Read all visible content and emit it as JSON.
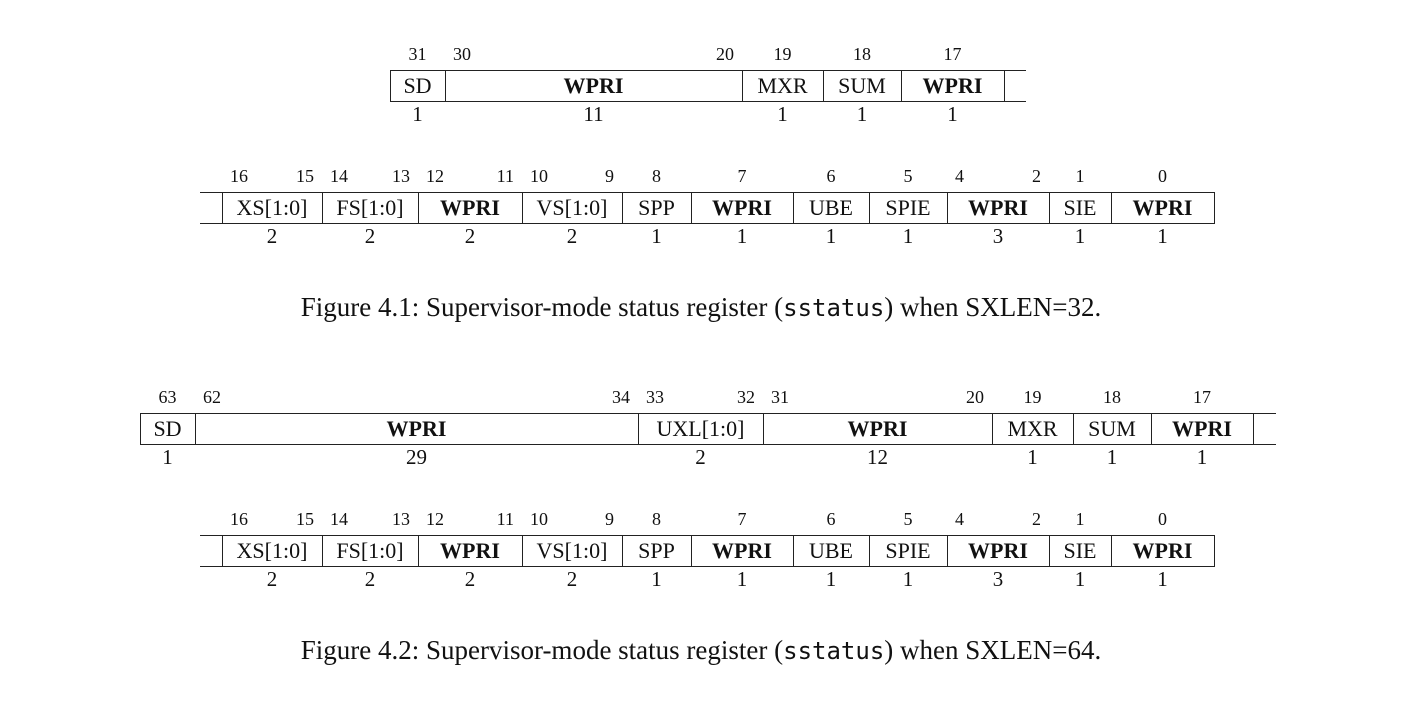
{
  "figures": [
    {
      "caption": {
        "prefix": "Figure 4.1: Supervisor-mode status register (",
        "code": "sstatus",
        "suffix": ") when SXLEN=32."
      },
      "rows": [
        {
          "fields": [
            {
              "name": "SD",
              "width": "1",
              "hi": "31",
              "lo": ""
            },
            {
              "name": "WPRI",
              "width": "11",
              "hi": "30",
              "lo": "20",
              "bold": true
            },
            {
              "name": "MXR",
              "width": "1",
              "hi": "19",
              "lo": ""
            },
            {
              "name": "SUM",
              "width": "1",
              "hi": "18",
              "lo": ""
            },
            {
              "name": "WPRI",
              "width": "1",
              "hi": "17",
              "lo": "",
              "bold": true
            }
          ]
        },
        {
          "fields": [
            {
              "name": "XS[1:0]",
              "width": "2",
              "hi": "16",
              "lo": "15"
            },
            {
              "name": "FS[1:0]",
              "width": "2",
              "hi": "14",
              "lo": "13"
            },
            {
              "name": "WPRI",
              "width": "2",
              "hi": "12",
              "lo": "11",
              "bold": true
            },
            {
              "name": "VS[1:0]",
              "width": "2",
              "hi": "10",
              "lo": "9"
            },
            {
              "name": "SPP",
              "width": "1",
              "hi": "8",
              "lo": ""
            },
            {
              "name": "WPRI",
              "width": "1",
              "hi": "7",
              "lo": "",
              "bold": true
            },
            {
              "name": "UBE",
              "width": "1",
              "hi": "6",
              "lo": ""
            },
            {
              "name": "SPIE",
              "width": "1",
              "hi": "5",
              "lo": ""
            },
            {
              "name": "WPRI",
              "width": "3",
              "hi": "4",
              "lo": "2",
              "bold": true
            },
            {
              "name": "SIE",
              "width": "1",
              "hi": "1",
              "lo": ""
            },
            {
              "name": "WPRI",
              "width": "1",
              "hi": "0",
              "lo": "",
              "bold": true
            }
          ]
        }
      ]
    },
    {
      "caption": {
        "prefix": "Figure 4.2: Supervisor-mode status register (",
        "code": "sstatus",
        "suffix": ") when SXLEN=64."
      },
      "rows": [
        {
          "fields": [
            {
              "name": "SD",
              "width": "1",
              "hi": "63",
              "lo": ""
            },
            {
              "name": "WPRI",
              "width": "29",
              "hi": "62",
              "lo": "34",
              "bold": true
            },
            {
              "name": "UXL[1:0]",
              "width": "2",
              "hi": "33",
              "lo": "32"
            },
            {
              "name": "WPRI",
              "width": "12",
              "hi": "31",
              "lo": "20",
              "bold": true
            },
            {
              "name": "MXR",
              "width": "1",
              "hi": "19",
              "lo": ""
            },
            {
              "name": "SUM",
              "width": "1",
              "hi": "18",
              "lo": ""
            },
            {
              "name": "WPRI",
              "width": "1",
              "hi": "17",
              "lo": "",
              "bold": true
            }
          ]
        },
        {
          "fields": [
            {
              "name": "XS[1:0]",
              "width": "2",
              "hi": "16",
              "lo": "15"
            },
            {
              "name": "FS[1:0]",
              "width": "2",
              "hi": "14",
              "lo": "13"
            },
            {
              "name": "WPRI",
              "width": "2",
              "hi": "12",
              "lo": "11",
              "bold": true
            },
            {
              "name": "VS[1:0]",
              "width": "2",
              "hi": "10",
              "lo": "9"
            },
            {
              "name": "SPP",
              "width": "1",
              "hi": "8",
              "lo": ""
            },
            {
              "name": "WPRI",
              "width": "1",
              "hi": "7",
              "lo": "",
              "bold": true
            },
            {
              "name": "UBE",
              "width": "1",
              "hi": "6",
              "lo": ""
            },
            {
              "name": "SPIE",
              "width": "1",
              "hi": "5",
              "lo": ""
            },
            {
              "name": "WPRI",
              "width": "3",
              "hi": "4",
              "lo": "2",
              "bold": true
            },
            {
              "name": "SIE",
              "width": "1",
              "hi": "1",
              "lo": ""
            },
            {
              "name": "WPRI",
              "width": "1",
              "hi": "0",
              "lo": "",
              "bold": true
            }
          ]
        }
      ]
    }
  ]
}
